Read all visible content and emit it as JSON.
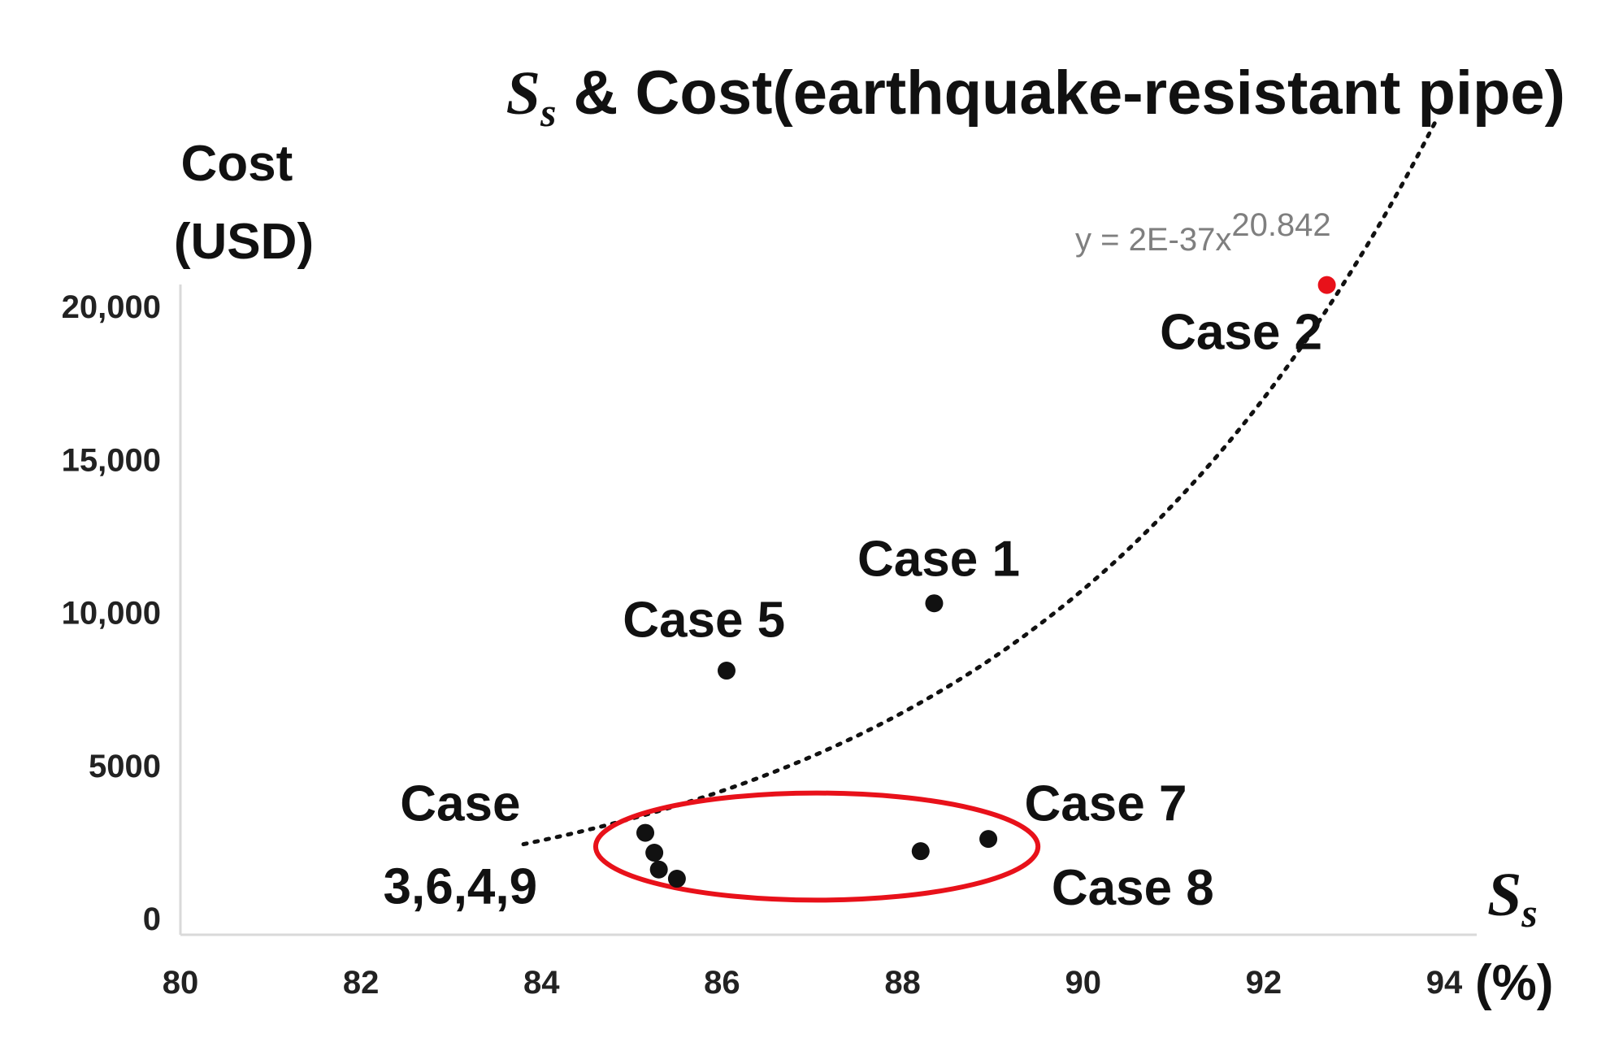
{
  "chart_data": {
    "type": "scatter",
    "title": {
      "symbol": "S",
      "subscript": "s",
      "text": " & Cost(earthquake-resistant pipe)"
    },
    "ylabel": [
      "Cost",
      "(USD)"
    ],
    "xlabel": {
      "symbol": "S",
      "subscript": "s",
      "unit": "(%)"
    },
    "xlim": [
      80,
      94
    ],
    "ylim": [
      0,
      20000
    ],
    "x_ticks": [
      "80",
      "82",
      "84",
      "86",
      "88",
      "90",
      "92",
      "94"
    ],
    "y_ticks": [
      {
        "value": 0,
        "label": "0"
      },
      {
        "value": 5000,
        "label": "5000"
      },
      {
        "value": 10000,
        "label": "10,000"
      },
      {
        "value": 15000,
        "label": "15,000"
      },
      {
        "value": 20000,
        "label": "20,000"
      }
    ],
    "grid": false,
    "series": [
      {
        "points": [
          {
            "x": 88.35,
            "y": 10300,
            "color": "#111111"
          },
          {
            "x": 92.7,
            "y": 20700,
            "color": "#e8111a"
          },
          {
            "x": 85.15,
            "y": 2800,
            "color": "#111111"
          },
          {
            "x": 85.25,
            "y": 2150,
            "color": "#111111"
          },
          {
            "x": 85.3,
            "y": 1600,
            "color": "#111111"
          },
          {
            "x": 85.5,
            "y": 1300,
            "color": "#111111"
          },
          {
            "x": 86.05,
            "y": 8100,
            "color": "#111111"
          },
          {
            "x": 88.2,
            "y": 2200,
            "color": "#111111"
          },
          {
            "x": 88.95,
            "y": 2600,
            "color": "#111111"
          }
        ]
      }
    ],
    "trendline": {
      "equation_prefix": "y = 2E-37x",
      "equation_exponent": "20.842",
      "a": 2e-37,
      "b": 20.842,
      "x_range": [
        83.8,
        93.9
      ],
      "color": "#111111"
    },
    "annotations": [
      {
        "lines": [
          "Case 2"
        ],
        "x": 91.75,
        "y": 18600,
        "anchor": "middle"
      },
      {
        "lines": [
          "Case 1"
        ],
        "x": 88.4,
        "y": 11200,
        "anchor": "middle"
      },
      {
        "lines": [
          "Case 5"
        ],
        "x": 85.8,
        "y": 9200,
        "anchor": "middle"
      },
      {
        "lines": [
          "Case",
          "3,6,4,9"
        ],
        "x": 83.1,
        "y": 3200,
        "anchor": "middle"
      },
      {
        "lines": [
          "Case 7"
        ],
        "x": 90.25,
        "y": 3200,
        "anchor": "middle"
      },
      {
        "lines": [
          "Case 8"
        ],
        "x": 90.55,
        "y": 450,
        "anchor": "middle"
      }
    ],
    "highlight_ellipse": {
      "cx": 87.05,
      "cy": 2350,
      "rx": 2.45,
      "ry": 1750,
      "color": "#e8111a"
    },
    "colors": {
      "axis": "#d9d9d9",
      "text": "#111111",
      "equation": "#7f7f7f",
      "highlight": "#e8111a"
    }
  }
}
